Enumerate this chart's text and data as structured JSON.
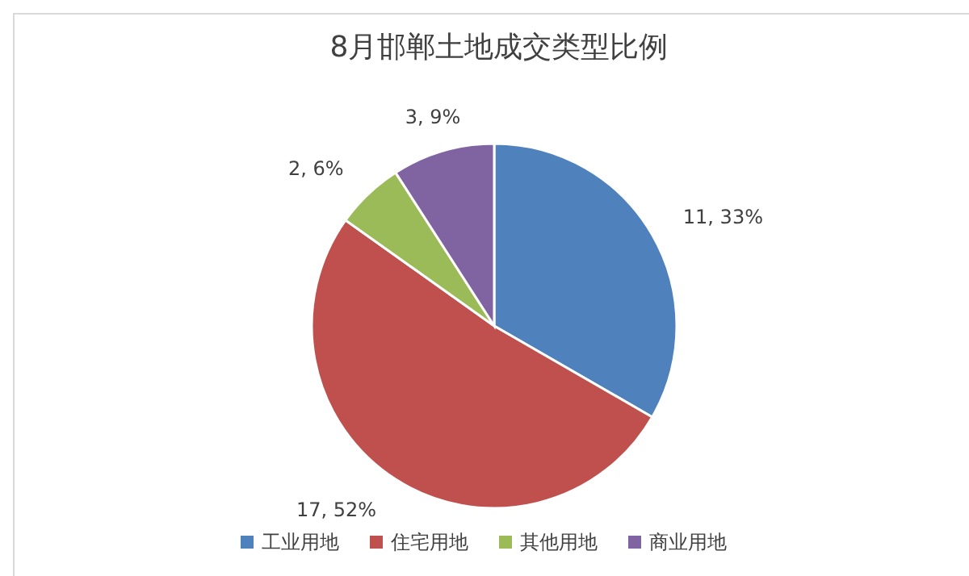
{
  "chart_data": {
    "type": "pie",
    "title": "8月邯郸土地成交类型比例",
    "categories": [
      "工业用地",
      "住宅用地",
      "其他用地",
      "商业用地"
    ],
    "values": [
      11,
      17,
      2,
      3
    ],
    "colors": [
      "#4f81bd",
      "#c0504d",
      "#9bbb59",
      "#8064a2"
    ],
    "value_labels": [
      "11, 33%",
      "17, 52%",
      "2, 6%",
      "3, 9%"
    ],
    "legend": "bottom"
  }
}
